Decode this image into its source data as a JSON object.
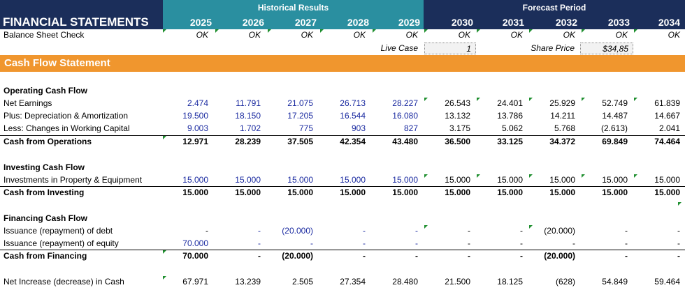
{
  "header": {
    "title": "FINANCIAL STATEMENTS",
    "historical_label": "Historical Results",
    "forecast_label": "Forecast Period",
    "years": [
      "2025",
      "2026",
      "2027",
      "2028",
      "2029",
      "2030",
      "2031",
      "2032",
      "2033",
      "2034"
    ]
  },
  "colors": {
    "navy": "#1b2e5a",
    "teal": "#2a8fa0",
    "orange": "#f0962e",
    "input_blue": "#1a2aa0",
    "flag_green": "#1f8f2f"
  },
  "balance_check": {
    "label": "Balance Sheet Check",
    "values": [
      "OK",
      "OK",
      "OK",
      "OK",
      "OK",
      "OK",
      "OK",
      "OK",
      "OK",
      "OK"
    ]
  },
  "assumptions": {
    "live_case_label": "Live Case",
    "live_case_value": "1",
    "share_price_label": "Share Price",
    "share_price_value": "$34,85"
  },
  "section_title": "Cash Flow Statement",
  "operating": {
    "heading": "Operating Cash Flow",
    "net_earnings": {
      "label": "Net Earnings",
      "values": [
        "2.474",
        "11.791",
        "21.075",
        "26.713",
        "28.227",
        "26.543",
        "24.401",
        "25.929",
        "52.749",
        "61.839"
      ]
    },
    "da": {
      "label": "Plus: Depreciation & Amortization",
      "values": [
        "19.500",
        "18.150",
        "17.205",
        "16.544",
        "16.080",
        "13.132",
        "13.786",
        "14.211",
        "14.487",
        "14.667"
      ]
    },
    "wc": {
      "label": "Less: Changes in Working Capital",
      "values": [
        "9.003",
        "1.702",
        "775",
        "903",
        "827",
        "3.175",
        "5.062",
        "5.768",
        "(2.613)",
        "2.041"
      ]
    },
    "total": {
      "label": "Cash from Operations",
      "values": [
        "12.971",
        "28.239",
        "37.505",
        "42.354",
        "43.480",
        "36.500",
        "33.125",
        "34.372",
        "69.849",
        "74.464"
      ]
    }
  },
  "investing": {
    "heading": "Investing Cash Flow",
    "ppe": {
      "label": "Investments in Property & Equipment",
      "values": [
        "15.000",
        "15.000",
        "15.000",
        "15.000",
        "15.000",
        "15.000",
        "15.000",
        "15.000",
        "15.000",
        "15.000"
      ]
    },
    "total": {
      "label": "Cash from Investing",
      "values": [
        "15.000",
        "15.000",
        "15.000",
        "15.000",
        "15.000",
        "15.000",
        "15.000",
        "15.000",
        "15.000",
        "15.000"
      ]
    }
  },
  "financing": {
    "heading": "Financing Cash Flow",
    "debt": {
      "label": "Issuance (repayment) of debt",
      "values": [
        "-",
        "-",
        "(20.000)",
        "-",
        "-",
        "-",
        "-",
        "(20.000)",
        "-",
        "-"
      ]
    },
    "equity": {
      "label": "Issuance (repayment) of equity",
      "values": [
        "70.000",
        "-",
        "-",
        "-",
        "-",
        "-",
        "-",
        "-",
        "-",
        "-"
      ]
    },
    "total": {
      "label": "Cash from Financing",
      "values": [
        "70.000",
        "-",
        "(20.000)",
        "-",
        "-",
        "-",
        "-",
        "(20.000)",
        "-",
        "-"
      ]
    }
  },
  "net_change": {
    "label": "Net Increase (decrease) in Cash",
    "values": [
      "67.971",
      "13.239",
      "2.505",
      "27.354",
      "28.480",
      "21.500",
      "18.125",
      "(628)",
      "54.849",
      "59.464"
    ]
  }
}
